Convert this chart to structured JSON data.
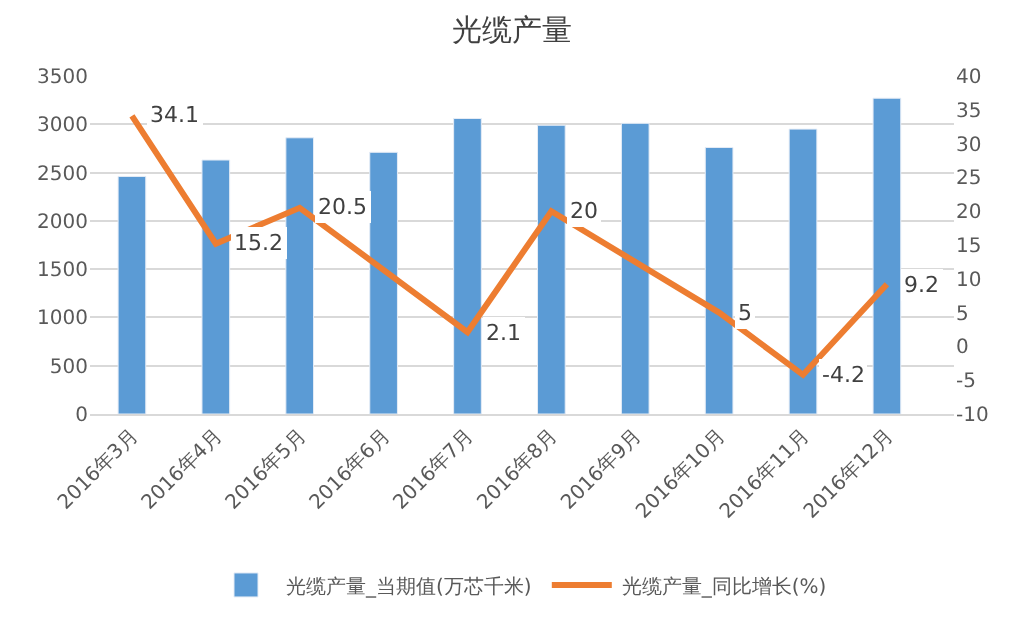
{
  "chart_data": {
    "type": "bar",
    "title": "光缆产量",
    "categories": [
      "2016年3月",
      "2016年4月",
      "2016年5月",
      "2016年6月",
      "2016年7月",
      "2016年8月",
      "2016年9月",
      "2016年10月",
      "2016年11月",
      "2016年12月"
    ],
    "series": [
      {
        "name": "光缆产量_当期值(万芯千米)",
        "color": "#5b9bd5",
        "values": [
          2460,
          2630,
          2860,
          2710,
          3060,
          2990,
          3010,
          2760,
          2950,
          3270
        ]
      },
      {
        "name": "光缆产量_同比增长(%)",
        "color": "#ed7d31",
        "type": "line",
        "axis": "y2",
        "data_labels": true,
        "values": [
          34.1,
          15.2,
          20.5,
          null,
          2.1,
          20,
          null,
          5,
          -4.2,
          9.2
        ]
      }
    ],
    "ylim": [
      0,
      3500
    ],
    "yticks": [
      0,
      500,
      1000,
      1500,
      2000,
      2500,
      3000,
      3500
    ],
    "y2lim": [
      -10,
      40
    ],
    "y2ticks": [
      -10,
      -5,
      0,
      5,
      10,
      15,
      20,
      25,
      30,
      35,
      40
    ],
    "grid": "y",
    "legend": "bottom",
    "marker": "none"
  }
}
